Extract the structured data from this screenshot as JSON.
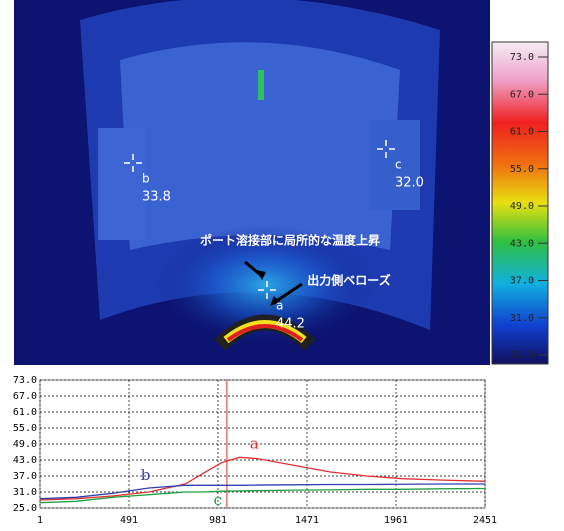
{
  "thermal_image": {
    "colorbar": {
      "lim": [
        25,
        73
      ],
      "ticks": [
        {
          "value": 73,
          "label": "73.0"
        },
        {
          "value": 67,
          "label": "67.0"
        },
        {
          "value": 61,
          "label": "61.0"
        },
        {
          "value": 55,
          "label": "55.0"
        },
        {
          "value": 49,
          "label": "49.0"
        },
        {
          "value": 43,
          "label": "43.0"
        },
        {
          "value": 37,
          "label": "37.0"
        },
        {
          "value": 31,
          "label": "31.0"
        },
        {
          "value": 25,
          "label": "25.0"
        }
      ]
    },
    "spots": [
      {
        "name": "a",
        "value": "44.2"
      },
      {
        "name": "b",
        "value": "33.8"
      },
      {
        "name": "c",
        "value": "32.0"
      }
    ],
    "annotations": [
      "ポート溶接部に局所的な温度上昇",
      "出力側ベローズ"
    ]
  },
  "chart_data": {
    "type": "line",
    "x": [
      1,
      200,
      400,
      600,
      800,
      900,
      1000,
      1100,
      1200,
      1400,
      1600,
      1800,
      2000,
      2200,
      2451
    ],
    "series": [
      {
        "name": "a",
        "color": "#e03030",
        "values": [
          28,
          28.5,
          29.5,
          31,
          34,
          38,
          42,
          44,
          43.5,
          41,
          38.5,
          37,
          36,
          35.5,
          35
        ]
      },
      {
        "name": "b",
        "color": "#3040b0",
        "values": [
          28.5,
          29,
          30.5,
          32.5,
          33.5,
          33.5,
          33.5,
          33.5,
          33.6,
          33.7,
          33.8,
          33.8,
          33.9,
          34,
          34
        ]
      },
      {
        "name": "c",
        "color": "#20a040",
        "values": [
          27,
          27.5,
          29,
          30,
          31,
          31,
          31.3,
          31.4,
          31.5,
          31.7,
          31.8,
          32,
          32,
          32.2,
          32.3
        ]
      }
    ],
    "xlim": [
      1,
      2451
    ],
    "xticks": [
      1,
      491,
      981,
      1471,
      1961,
      2451
    ],
    "ylim": [
      25,
      73
    ],
    "yticks": [
      {
        "value": 73,
        "label": "73.0"
      },
      {
        "value": 67,
        "label": "67.0"
      },
      {
        "value": 61,
        "label": "61.0"
      },
      {
        "value": 55,
        "label": "55.0"
      },
      {
        "value": 49,
        "label": "49.0"
      },
      {
        "value": 43,
        "label": "43.0"
      },
      {
        "value": 37,
        "label": "37.0"
      },
      {
        "value": 31,
        "label": "31.0"
      },
      {
        "value": 25,
        "label": "25.0"
      }
    ],
    "grid": true,
    "cursor_x": 1030
  }
}
